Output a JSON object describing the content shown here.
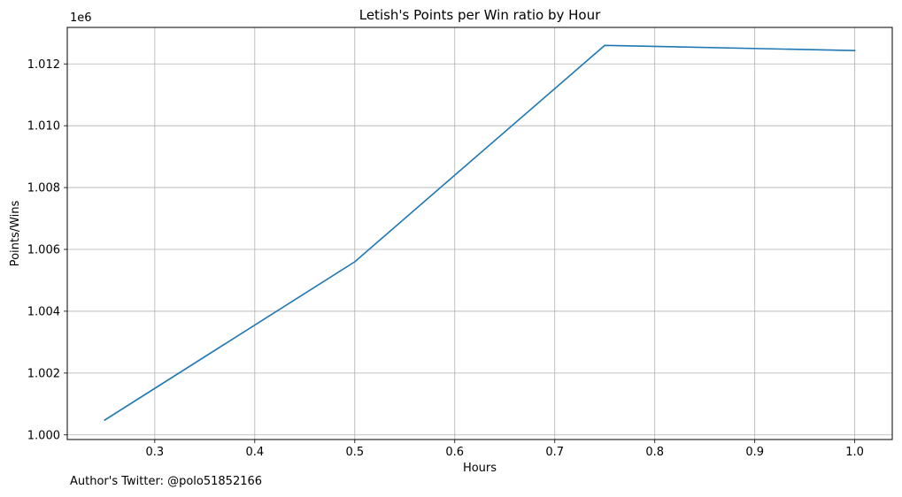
{
  "chart_data": {
    "type": "line",
    "title": "Letish's Points per Win ratio by Hour",
    "xlabel": "Hours",
    "ylabel": "Points/Wins",
    "y_offset_text": "1e6",
    "xlim": [
      0.2125,
      1.0375
    ],
    "ylim": [
      0.99985,
      1.01318
    ],
    "y_multiplier": 1000000,
    "x_ticks": [
      0.3,
      0.4,
      0.5,
      0.6,
      0.7,
      0.8,
      0.9,
      1.0
    ],
    "x_tick_labels": [
      "0.3",
      "0.4",
      "0.5",
      "0.6",
      "0.7",
      "0.8",
      "0.9",
      "1.0"
    ],
    "y_ticks": [
      1.0,
      1.002,
      1.004,
      1.006,
      1.008,
      1.01,
      1.012
    ],
    "y_tick_labels": [
      "1.000",
      "1.002",
      "1.004",
      "1.006",
      "1.008",
      "1.010",
      "1.012"
    ],
    "grid": true,
    "series": [
      {
        "color": "#1f77b4",
        "x": [
          0.25,
          0.5,
          0.75,
          1.0
        ],
        "y": [
          1000480,
          1005600,
          1012600,
          1012430
        ]
      }
    ]
  },
  "footer": {
    "author_note": "Author's Twitter: @polo51852166"
  }
}
